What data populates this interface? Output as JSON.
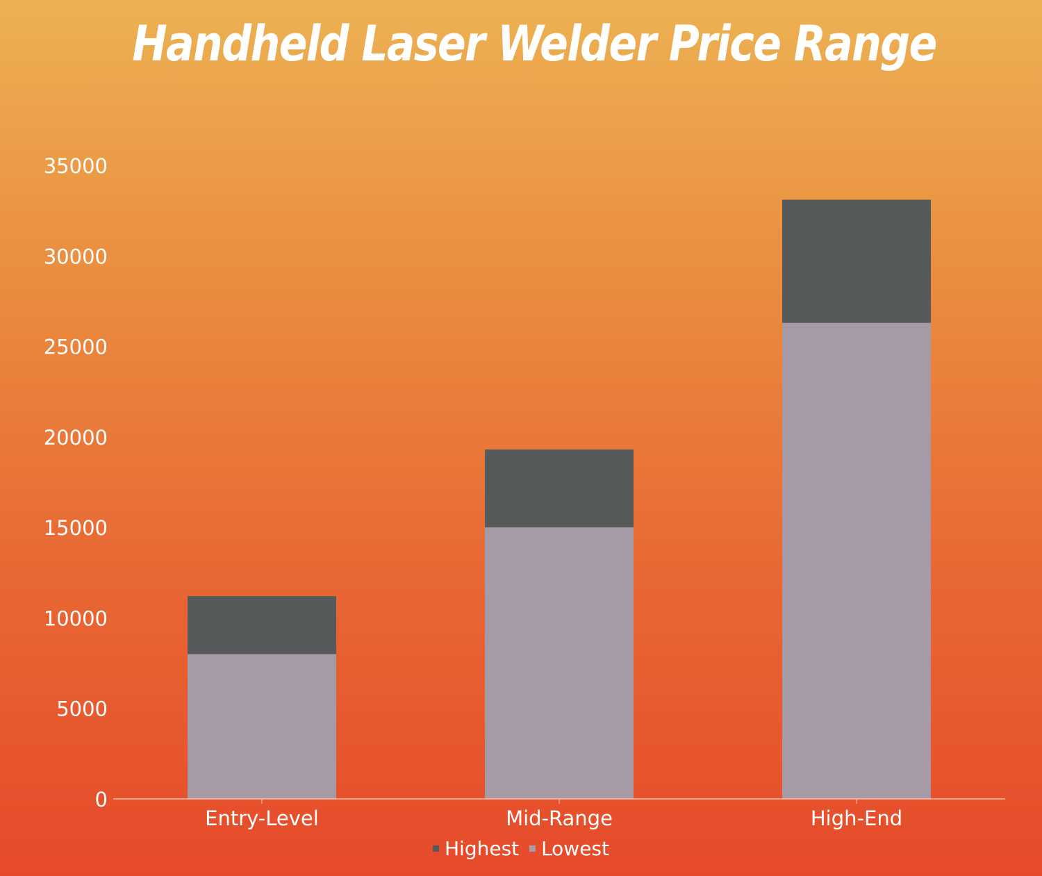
{
  "chart_data": {
    "type": "bar",
    "stacked": true,
    "title": "Handheld Laser Welder Price Range",
    "categories": [
      "Entry-Level",
      "Mid-Range",
      "High-End"
    ],
    "series": [
      {
        "name": "Lowest",
        "values": [
          8000,
          15000,
          26300
        ],
        "color": "#a59aa6"
      },
      {
        "name": "Highest",
        "values": [
          3200,
          4300,
          6800
        ],
        "color": "#575a5b"
      }
    ],
    "ylim": [
      0,
      35000
    ],
    "yticks": [
      0,
      5000,
      10000,
      15000,
      20000,
      25000,
      30000,
      35000
    ],
    "ytick_labels": [
      "0",
      "5000",
      "10000",
      "15000",
      "20000",
      "25000",
      "30000",
      "35000"
    ],
    "grid": false,
    "legend": {
      "position": "bottom",
      "entries": [
        "Highest",
        "Lowest"
      ]
    }
  },
  "colors": {
    "background_top": "#edb153",
    "background_bottom": "#e64a2a",
    "axis_line": "#f2c6b0",
    "text": "#ffffff"
  }
}
